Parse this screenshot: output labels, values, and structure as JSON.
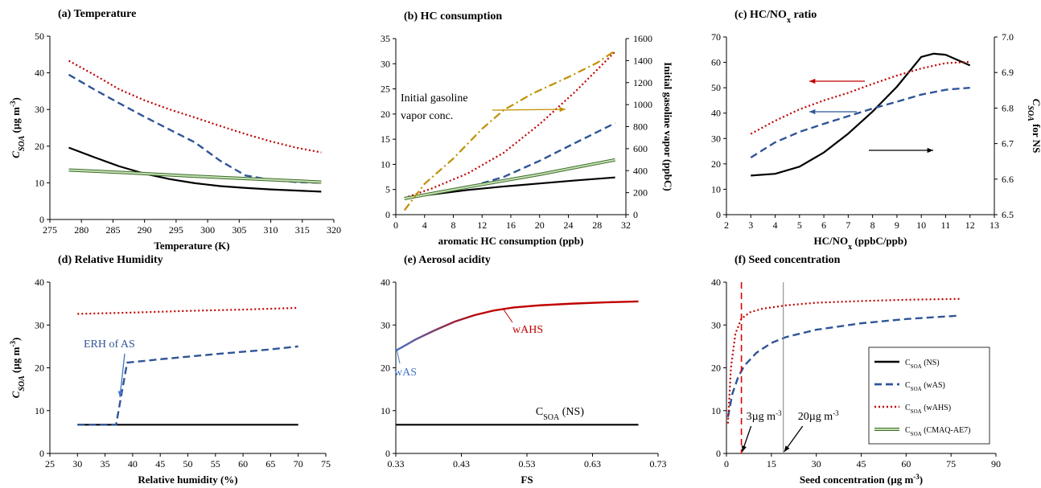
{
  "colors": {
    "NS": "#000000",
    "wAS": "#2f5597",
    "wAHS": "#c00000",
    "CMAQ": "#70ad47",
    "gas": "#c09000",
    "wAS_label": "#4472c4",
    "seed_3": "#e00000",
    "seed_20": "#808080"
  },
  "legend": {
    "entries": [
      {
        "main": "C",
        "sub": "SOA",
        "rest": " (NS)",
        "series": "NS"
      },
      {
        "main": "C",
        "sub": "SOA",
        "rest": " (wAS)",
        "series": "wAS"
      },
      {
        "main": "C",
        "sub": "SOA",
        "rest": " (wAHS)",
        "series": "wAHS"
      },
      {
        "main": "C",
        "sub": "SOA",
        "rest": " (CMAQ-AE7)",
        "series": "CMAQ"
      }
    ]
  },
  "chart_data": [
    {
      "id": "a",
      "type": "line",
      "title": "(a) Temperature",
      "xlabel": "Temperature (K)",
      "ylabel": {
        "main": "C",
        "sub": "SOA",
        "rest": " (µg m",
        "sup": "-3",
        "end": ")"
      },
      "xlim": [
        275,
        320
      ],
      "ylim": [
        0,
        50
      ],
      "xticks": [
        275,
        280,
        285,
        290,
        295,
        300,
        305,
        310,
        315,
        320
      ],
      "yticks": [
        0,
        10,
        20,
        30,
        40,
        50
      ],
      "series": [
        {
          "key": "NS",
          "x": [
            278,
            282,
            286,
            290,
            294,
            298,
            302,
            306,
            310,
            314,
            318
          ],
          "y": [
            19.6,
            17.0,
            14.5,
            12.5,
            11.0,
            9.9,
            9.1,
            8.6,
            8.2,
            7.9,
            7.6
          ]
        },
        {
          "key": "wAS",
          "x": [
            278,
            282,
            286,
            290,
            294,
            298,
            302,
            306,
            310,
            314,
            318
          ],
          "y": [
            39.5,
            35.5,
            31.7,
            28.0,
            24.5,
            21.0,
            16.0,
            12.0,
            10.8,
            10.2,
            10.0
          ]
        },
        {
          "key": "wAHS",
          "x": [
            278,
            282,
            286,
            290,
            294,
            298,
            302,
            306,
            310,
            314,
            318
          ],
          "y": [
            43.3,
            39.5,
            35.5,
            32.5,
            30.0,
            27.8,
            25.5,
            23.3,
            21.3,
            19.6,
            18.3
          ]
        },
        {
          "key": "CMAQ",
          "x": [
            278,
            288,
            298,
            308,
            318
          ],
          "y": [
            13.5,
            12.7,
            11.8,
            11.0,
            10.2
          ]
        }
      ]
    },
    {
      "id": "b",
      "type": "line",
      "title": "(b) HC consumption",
      "xlabel": "aromatic HC consumption (ppb)",
      "y2label": "Initial gasoline vapor (ppbC)",
      "xlim": [
        0,
        32
      ],
      "ylim": [
        0,
        35
      ],
      "y2lim": [
        0,
        1600
      ],
      "xticks": [
        0,
        4,
        8,
        12,
        16,
        20,
        24,
        28,
        32
      ],
      "yticks": [
        0,
        5,
        10,
        15,
        20,
        25,
        30,
        35
      ],
      "y2ticks": [
        0,
        200,
        400,
        600,
        800,
        1000,
        1200,
        1400,
        1600
      ],
      "annotation": [
        "Initial gasoline",
        "vapor conc."
      ],
      "series": [
        {
          "key": "NS",
          "x": [
            1.2,
            5,
            10,
            15,
            20,
            25,
            30.5
          ],
          "y": [
            3.3,
            4.0,
            4.9,
            5.6,
            6.2,
            6.8,
            7.4
          ]
        },
        {
          "key": "wAS",
          "x": [
            1.2,
            5,
            10,
            15,
            20,
            25,
            30.5
          ],
          "y": [
            3.3,
            4.2,
            5.4,
            7.5,
            10.7,
            14.3,
            18.2
          ]
        },
        {
          "key": "wAHS",
          "x": [
            1.2,
            5,
            10,
            15,
            20,
            25,
            30.5
          ],
          "y": [
            3.3,
            5.2,
            8.2,
            12.3,
            18.0,
            24.5,
            32.4
          ]
        },
        {
          "key": "CMAQ",
          "x": [
            1.2,
            10,
            20,
            30.5
          ],
          "y": [
            3.2,
            5.5,
            8.0,
            10.9
          ]
        },
        {
          "key": "gas",
          "axis": "y2",
          "x": [
            1.2,
            4,
            8,
            12,
            15,
            19,
            24,
            28,
            30.5
          ],
          "y": [
            40,
            280,
            510,
            780,
            950,
            1100,
            1250,
            1380,
            1490
          ]
        }
      ]
    },
    {
      "id": "c",
      "type": "line",
      "title": "(c) HC/NO",
      "title_sub": "x",
      "title_end": " ratio",
      "xlabel": "HC/NO",
      "xlabel_sub": "x",
      "xlabel_end": " (ppbC/ppb)",
      "y2label": {
        "main": "C",
        "sub": "SOA",
        "rest": " for NS"
      },
      "xlim": [
        2,
        13
      ],
      "ylim": [
        0,
        70
      ],
      "y2lim": [
        6.5,
        7.0
      ],
      "xticks": [
        2,
        3,
        4,
        5,
        6,
        7,
        8,
        9,
        10,
        11,
        12,
        13
      ],
      "yticks": [
        0,
        10,
        20,
        30,
        40,
        50,
        60,
        70
      ],
      "y2ticks": [
        "6.5",
        "6.6",
        "6.7",
        "6.8",
        "6.9",
        "7.0"
      ],
      "series": [
        {
          "key": "NS",
          "axis": "y2",
          "x": [
            3,
            4,
            5,
            6,
            7,
            8,
            9,
            10,
            10.5,
            11,
            12
          ],
          "y": [
            6.61,
            6.615,
            6.635,
            6.675,
            6.728,
            6.79,
            6.86,
            6.944,
            6.953,
            6.95,
            6.92
          ]
        },
        {
          "key": "wAS",
          "x": [
            3,
            4,
            5,
            6,
            7,
            8,
            9,
            10,
            11,
            12
          ],
          "y": [
            22.5,
            28.5,
            32.6,
            35.8,
            38.8,
            41.8,
            44.5,
            47.3,
            49.2,
            50.0
          ]
        },
        {
          "key": "wAHS",
          "x": [
            3,
            4,
            5,
            6,
            7,
            8,
            9,
            10,
            11,
            12
          ],
          "y": [
            31.8,
            37.0,
            41.5,
            45.0,
            48.0,
            51.5,
            54.8,
            57.6,
            59.7,
            60.2
          ]
        }
      ]
    },
    {
      "id": "d",
      "type": "line",
      "title": "(d) Relative Humidity",
      "xlabel": "Relative humidity (%)",
      "ylabel": {
        "main": "C",
        "sub": "SOA",
        "rest": " (µg m",
        "sup": "-3",
        "end": ")"
      },
      "xlim": [
        25,
        75
      ],
      "ylim": [
        0,
        40
      ],
      "xticks": [
        25,
        30,
        35,
        40,
        45,
        50,
        55,
        60,
        65,
        70,
        75
      ],
      "yticks": [
        0,
        10,
        20,
        30,
        40
      ],
      "annotation": "ERH of AS",
      "series": [
        {
          "key": "NS",
          "x": [
            30,
            70
          ],
          "y": [
            6.7,
            6.7
          ]
        },
        {
          "key": "wAS",
          "x": [
            30,
            37,
            38,
            39,
            45,
            55,
            65,
            70
          ],
          "y": [
            6.7,
            6.7,
            14,
            21.2,
            22.0,
            23.2,
            24.3,
            25.0
          ]
        },
        {
          "key": "wAHS",
          "x": [
            30,
            40,
            50,
            60,
            70
          ],
          "y": [
            32.6,
            32.9,
            33.3,
            33.6,
            34.0
          ]
        }
      ]
    },
    {
      "id": "e",
      "type": "line",
      "title": "(e) Aerosol acidity",
      "xlabel": "FS",
      "xlim": [
        0.33,
        0.73
      ],
      "ylim": [
        0,
        40
      ],
      "xticks": [
        "0.33",
        "0.43",
        "0.53",
        "0.63",
        "0.73"
      ],
      "yticks": [
        0,
        10,
        20,
        30,
        40
      ],
      "labels": {
        "wAS": "wAS",
        "wAHS": "wAHS",
        "NS": {
          "main": "C",
          "sub": "SOA",
          "rest": " (NS)"
        }
      },
      "series": [
        {
          "key": "NS",
          "x": [
            0.33,
            0.7
          ],
          "y": [
            6.7,
            6.7
          ]
        },
        {
          "key": "acid",
          "x": [
            0.33,
            0.36,
            0.39,
            0.42,
            0.45,
            0.48,
            0.51,
            0.55,
            0.6,
            0.65,
            0.7
          ],
          "y": [
            24.0,
            26.6,
            28.8,
            30.8,
            32.3,
            33.4,
            34.1,
            34.6,
            35.0,
            35.3,
            35.5
          ]
        }
      ]
    },
    {
      "id": "f",
      "type": "line",
      "title": "(f) Seed concentration",
      "xlabel": "Seed concentration (µg m",
      "xlabel_sup": "-3",
      "xlabel_end": ")",
      "xlim": [
        0,
        90
      ],
      "ylim": [
        0,
        40
      ],
      "xticks": [
        0,
        15,
        30,
        45,
        60,
        75,
        90
      ],
      "yticks": [
        0,
        10,
        20,
        30,
        40
      ],
      "markers": [
        {
          "x": 5,
          "key": "seed_3",
          "text": "3µg m",
          "sup": "-3"
        },
        {
          "x": 19,
          "key": "seed_20",
          "text": "20µg m",
          "sup": "-3"
        }
      ],
      "series": [
        {
          "key": "wAS",
          "x": [
            0.5,
            2,
            4,
            6,
            10,
            15,
            20,
            30,
            45,
            60,
            78
          ],
          "y": [
            8.5,
            14.0,
            18.0,
            20.5,
            23.5,
            25.8,
            27.2,
            28.9,
            30.4,
            31.4,
            32.2
          ]
        },
        {
          "key": "wAHS",
          "x": [
            0.5,
            1.5,
            3,
            5,
            8,
            12,
            20,
            30,
            45,
            60,
            78
          ],
          "y": [
            7.0,
            20.0,
            28.0,
            31.5,
            33.0,
            33.8,
            34.6,
            35.2,
            35.6,
            35.9,
            36.1
          ]
        }
      ]
    }
  ]
}
